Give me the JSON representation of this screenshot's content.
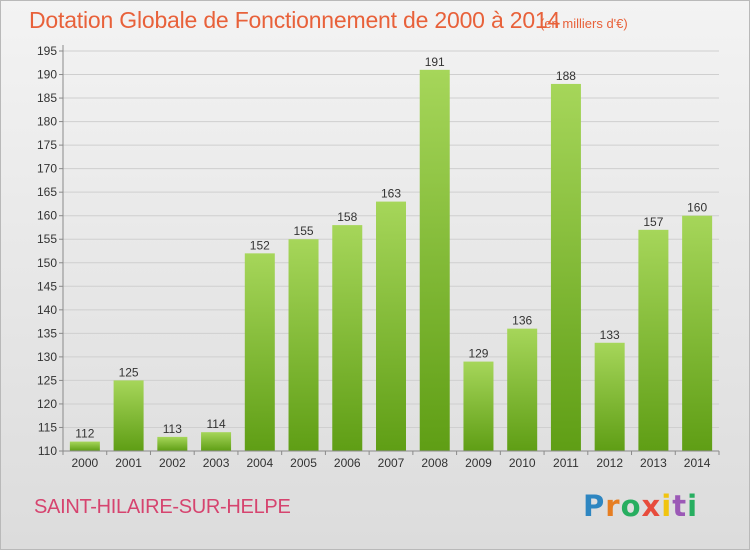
{
  "title": "Dotation Globale de Fonctionnement de 2000 à 2014",
  "unit": "(en milliers d'€)",
  "commune": "SAINT-HILAIRE-SUR-HELPE",
  "brand": {
    "letters": [
      "P",
      "r",
      "o",
      "x",
      "i",
      "t",
      "i"
    ],
    "colors": [
      "#2e86c1",
      "#e67e22",
      "#27ae60",
      "#e74c3c",
      "#f1c40f",
      "#9b59b6",
      "#27ae60"
    ]
  },
  "colors": {
    "bar_top": "#a6d65a",
    "bar_bottom": "#5f9e15",
    "grid": "#cfcfcf",
    "axis": "#8a8a8a",
    "title": "#e8613a",
    "commune": "#d6446f"
  },
  "chart_data": {
    "type": "bar",
    "title": "Dotation Globale de Fonctionnement de 2000 à 2014",
    "subtitle": "(en milliers d'€)",
    "xlabel": "",
    "ylabel": "",
    "categories": [
      "2000",
      "2001",
      "2002",
      "2003",
      "2004",
      "2005",
      "2006",
      "2007",
      "2008",
      "2009",
      "2010",
      "2011",
      "2012",
      "2013",
      "2014"
    ],
    "values": [
      112,
      125,
      113,
      114,
      152,
      155,
      158,
      163,
      191,
      129,
      136,
      188,
      133,
      157,
      160
    ],
    "ylim": [
      110,
      195
    ],
    "yticks": [
      110,
      115,
      120,
      125,
      130,
      135,
      140,
      145,
      150,
      155,
      160,
      165,
      170,
      175,
      180,
      185,
      190,
      195
    ],
    "grid": true,
    "legend": "none"
  }
}
